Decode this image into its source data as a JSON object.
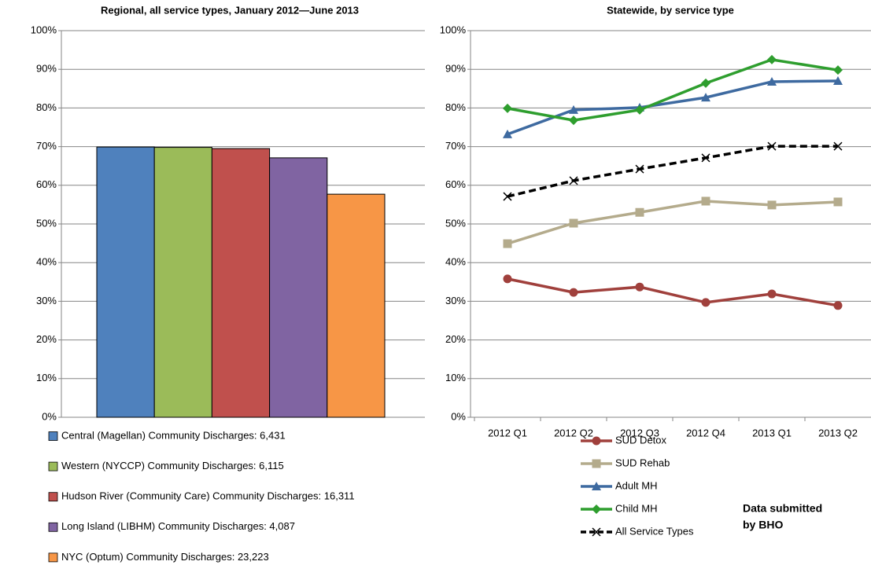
{
  "chart_data": [
    {
      "type": "bar",
      "title": "Regional, all service types, January 2012—June 2013",
      "categories": [
        "Central (Magellan) Community Discharges: 6,431",
        "Western (NYCCP) Community Discharges: 6,115",
        "Hudson River (Community Care) Community Discharges: 16,311",
        "Long Island (LIBHM) Community Discharges: 4,087",
        "NYC (Optum) Community Discharges: 23,223"
      ],
      "values": [
        69.9,
        69.8,
        69.5,
        67.1,
        57.7
      ],
      "colors": [
        "#4f81bd",
        "#9bbb59",
        "#c0504d",
        "#8064a2",
        "#f79646"
      ],
      "ylim": [
        0,
        100
      ],
      "yticks": [
        {
          "value": 0,
          "label": "0%"
        },
        {
          "value": 10,
          "label": "10%"
        },
        {
          "value": 20,
          "label": "20%"
        },
        {
          "value": 30,
          "label": "30%"
        },
        {
          "value": 40,
          "label": "40%"
        },
        {
          "value": 50,
          "label": "50%"
        },
        {
          "value": 60,
          "label": "60%"
        },
        {
          "value": 70,
          "label": "70%"
        },
        {
          "value": 80,
          "label": "80%"
        },
        {
          "value": 90,
          "label": "90%"
        },
        {
          "value": 100,
          "label": "100%"
        }
      ],
      "grid": true
    },
    {
      "type": "line",
      "title": "Statewide, by service type",
      "categories": [
        "2012 Q1",
        "2012 Q2",
        "2012 Q3",
        "2012 Q4",
        "2013 Q1",
        "2013 Q2"
      ],
      "series": [
        {
          "name": "SUD Detox",
          "color": "#a0403c",
          "marker": "circle",
          "values": [
            35.8,
            32.3,
            33.7,
            29.7,
            31.9,
            28.9
          ]
        },
        {
          "name": "SUD Rehab",
          "color": "#b4ab8c",
          "marker": "square",
          "values": [
            44.9,
            50.2,
            53.0,
            55.9,
            54.9,
            55.7
          ]
        },
        {
          "name": "Adult MH",
          "color": "#3e6aa0",
          "marker": "triangle",
          "values": [
            73.2,
            79.5,
            80.1,
            82.7,
            86.8,
            87.0
          ]
        },
        {
          "name": "Child MH",
          "color": "#2e9e2e",
          "marker": "diamond",
          "values": [
            79.9,
            76.8,
            79.5,
            86.4,
            92.5,
            89.8
          ]
        },
        {
          "name": "All Service Types",
          "color": "#000000",
          "marker": "x",
          "dashed": true,
          "values": [
            57.1,
            61.2,
            64.2,
            67.1,
            70.1,
            70.1
          ]
        }
      ],
      "ylim": [
        0,
        100
      ],
      "yticks": [
        {
          "value": 0,
          "label": "0%"
        },
        {
          "value": 10,
          "label": "10%"
        },
        {
          "value": 20,
          "label": "20%"
        },
        {
          "value": 30,
          "label": "30%"
        },
        {
          "value": 40,
          "label": "40%"
        },
        {
          "value": 50,
          "label": "50%"
        },
        {
          "value": 60,
          "label": "60%"
        },
        {
          "value": 70,
          "label": "70%"
        },
        {
          "value": 80,
          "label": "80%"
        },
        {
          "value": 90,
          "label": "90%"
        },
        {
          "value": 100,
          "label": "100%"
        }
      ],
      "grid": true,
      "annotation": [
        "Data submitted",
        "by BHO"
      ]
    }
  ]
}
